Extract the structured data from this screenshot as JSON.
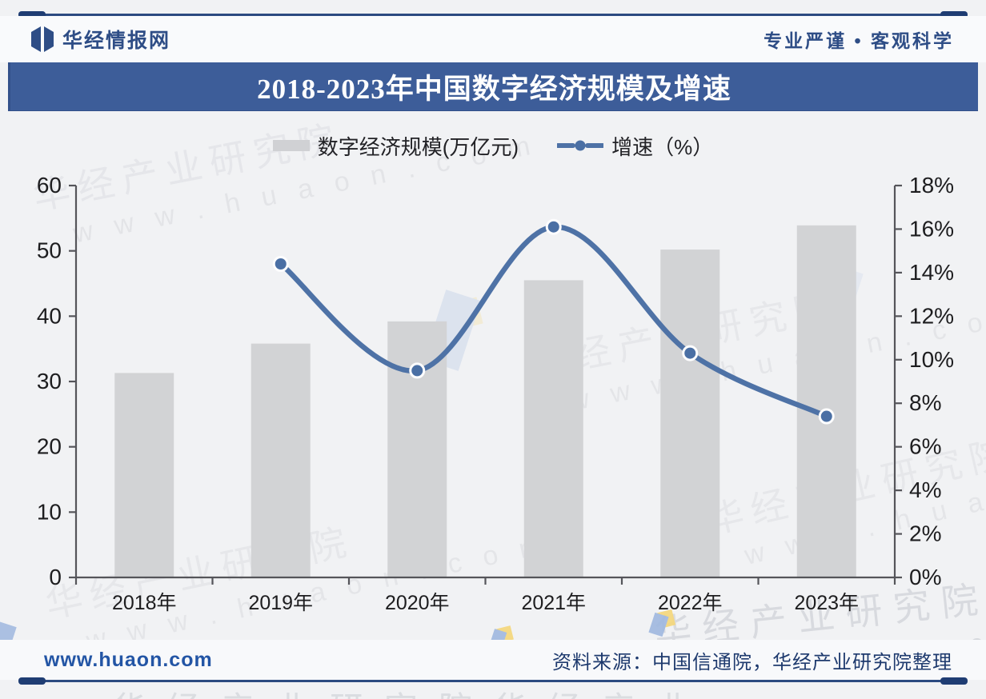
{
  "header": {
    "brand": "华经情报网",
    "tagline": "专业严谨 • 客观科学",
    "logo_icon": "open-book-mark",
    "brand_color": "#2e4d86"
  },
  "title": "2018-2023年中国数字经济规模及增速",
  "legend": {
    "bar_label": "数字经济规模(万亿元)",
    "line_label": "增速（%）"
  },
  "chart_data": {
    "type": "bar+line",
    "title": "2018-2023年中国数字经济规模及增速",
    "categories": [
      "2018年",
      "2019年",
      "2020年",
      "2021年",
      "2022年",
      "2023年"
    ],
    "series": [
      {
        "name": "数字经济规模(万亿元)",
        "type": "bar",
        "axis": "left",
        "values": [
          31.3,
          35.8,
          39.2,
          45.5,
          50.2,
          53.9
        ],
        "color": "#d2d3d5"
      },
      {
        "name": "增速（%）",
        "type": "line",
        "axis": "right",
        "values": [
          null,
          14.4,
          9.5,
          16.1,
          10.3,
          7.4
        ],
        "color": "#4e72a6",
        "marker_color": "#4a6fa4"
      }
    ],
    "left_axis": {
      "min": 0,
      "max": 60,
      "step": 10,
      "tick_labels": [
        "0",
        "10",
        "20",
        "30",
        "40",
        "50",
        "60"
      ]
    },
    "right_axis": {
      "min": 0,
      "max": 18,
      "step": 2,
      "tick_labels": [
        "0%",
        "2%",
        "4%",
        "6%",
        "8%",
        "10%",
        "12%",
        "14%",
        "16%",
        "18%"
      ]
    },
    "grid": false,
    "legend_position": "top",
    "xlabel": "",
    "ylabel_left": "万亿元",
    "ylabel_right": "%"
  },
  "footer": {
    "website": "www.huaon.com",
    "source": "资料来源：中国信通院，华经产业研究院整理"
  },
  "watermark": {
    "text": "华经产业研究院",
    "url": "www.huaon.com",
    "url_spaced": "w w w . h u a o n . c o m",
    "ghost_row": "华经产业研究院华经产业"
  },
  "colors": {
    "title_bar": "#3d5d99",
    "bar_fill": "#d2d3d5",
    "line_stroke": "#4e72a6",
    "marker_fill": "#4a6fa4",
    "axis_line": "#55555a",
    "tick_text": "#1d1d1f",
    "brand_blue": "#2e4d86",
    "footer_link": "#2355a5",
    "footer_source": "#1e3a6e",
    "page_bg": "#f1f2f4"
  }
}
